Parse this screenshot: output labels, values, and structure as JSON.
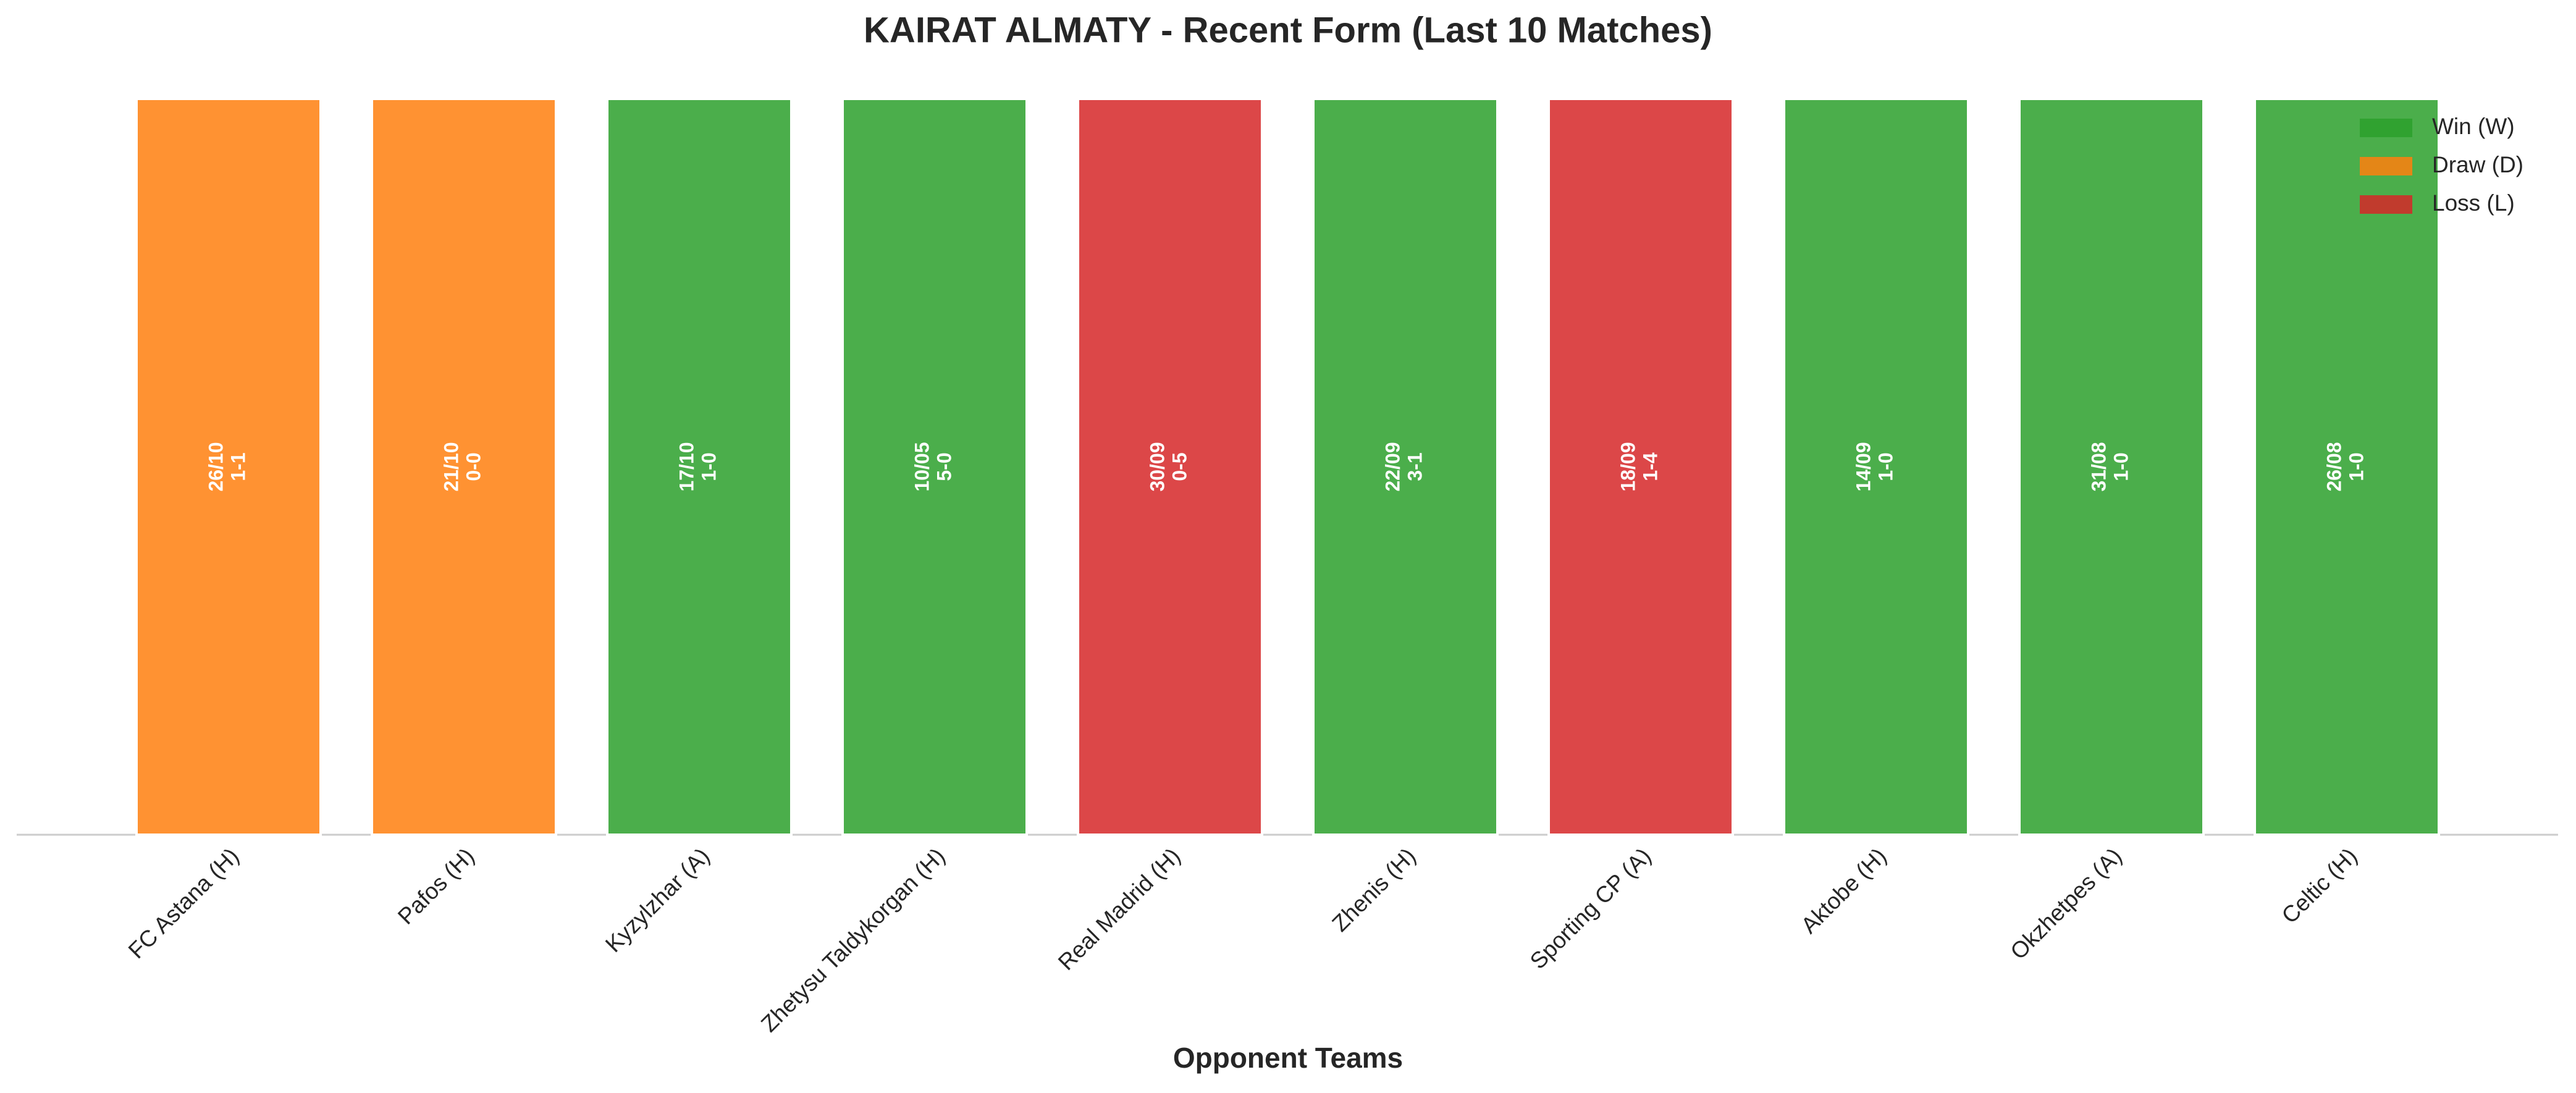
{
  "chart_data": {
    "type": "bar",
    "title": "KAIRAT ALMATY - Recent Form (Last 10 Matches)",
    "x_label": "Opponent Teams",
    "categories": [
      "FC Astana (H)",
      "Pafos (H)",
      "Kyzylzhar (A)",
      "Zhetysu Taldykorgan (H)",
      "Real Madrid (H)",
      "Zhenis (H)",
      "Sporting CP (A)",
      "Aktobe (H)",
      "Okzhetpes (A)",
      "Celtic (H)"
    ],
    "values": [
      1,
      1,
      1,
      1,
      1,
      1,
      1,
      1,
      1,
      1
    ],
    "bar_labels": [
      [
        "26/10",
        "1-1"
      ],
      [
        "21/10",
        "0-0"
      ],
      [
        "17/10",
        "1-0"
      ],
      [
        "10/05",
        "5-0"
      ],
      [
        "30/09",
        "0-5"
      ],
      [
        "22/09",
        "3-1"
      ],
      [
        "18/09",
        "1-4"
      ],
      [
        "14/09",
        "1-0"
      ],
      [
        "31/08",
        "1-0"
      ],
      [
        "26/08",
        "1-0"
      ]
    ],
    "colors": [
      "#ff7f0e",
      "#ff7f0e",
      "#2ca02c",
      "#2ca02c",
      "#d62728",
      "#2ca02c",
      "#d62728",
      "#2ca02c",
      "#2ca02c",
      "#2ca02c"
    ],
    "ylim": [
      0,
      1
    ],
    "legend": [
      {
        "name": "Win (W)",
        "color": "#2ca02c"
      },
      {
        "name": "Draw (D)",
        "color": "#ff7f0e"
      },
      {
        "name": "Loss (L)",
        "color": "#d62728"
      }
    ],
    "legend_position": "upper right"
  }
}
